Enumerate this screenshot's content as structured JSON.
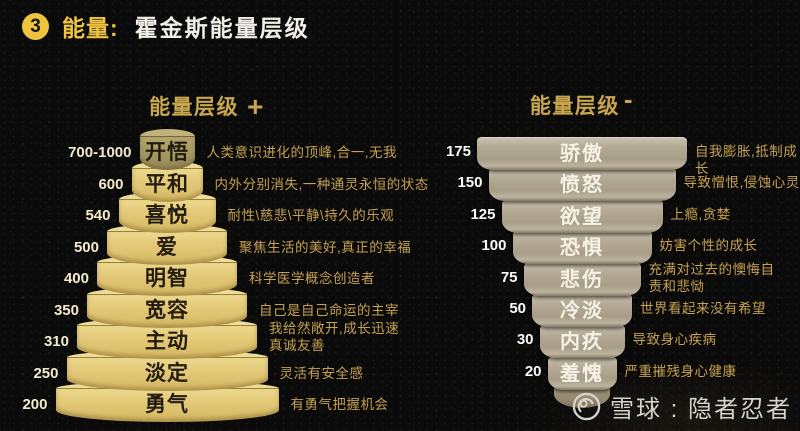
{
  "header": {
    "badge": "3",
    "label": "能量:",
    "title": "霍金斯能量层级"
  },
  "left_pyramid": {
    "title": "能量层级",
    "sign": "+",
    "levels": [
      {
        "value": "700-1000",
        "label": "开悟",
        "desc": "人类意识进化的顶峰,合一,无我"
      },
      {
        "value": "600",
        "label": "平和",
        "desc": "内外分别消失,一种通灵永恒的状态"
      },
      {
        "value": "540",
        "label": "喜悦",
        "desc": "耐性\\慈悲\\平静\\持久的乐观"
      },
      {
        "value": "500",
        "label": "爱",
        "desc": "聚焦生活的美好,真正的幸福"
      },
      {
        "value": "400",
        "label": "明智",
        "desc": "科学医学概念创造者"
      },
      {
        "value": "350",
        "label": "宽容",
        "desc": "自己是自己命运的主宰"
      },
      {
        "value": "310",
        "label": "主动",
        "desc": "我给然敞开,成长迅速\n真诚友善"
      },
      {
        "value": "250",
        "label": "淡定",
        "desc": "灵活有安全感"
      },
      {
        "value": "200",
        "label": "勇气",
        "desc": "有勇气把握机会"
      }
    ]
  },
  "right_pyramid": {
    "title": "能量层级",
    "sign": "-",
    "levels": [
      {
        "value": "175",
        "label": "骄傲",
        "desc": "自我膨胀,抵制成长"
      },
      {
        "value": "150",
        "label": "愤怒",
        "desc": "导致憎恨,侵蚀心灵"
      },
      {
        "value": "125",
        "label": "欲望",
        "desc": "上瘾,贪婪"
      },
      {
        "value": "100",
        "label": "恐惧",
        "desc": "妨害个性的成长"
      },
      {
        "value": "75",
        "label": "悲伤",
        "desc": "充满对过去的懊悔自\n责和悲恸"
      },
      {
        "value": "50",
        "label": "冷淡",
        "desc": "世界看起来没有希望"
      },
      {
        "value": "30",
        "label": "内疚",
        "desc": "导致身心疾病"
      },
      {
        "value": "20",
        "label": "羞愧",
        "desc": "严重摧残身心健康"
      }
    ]
  },
  "watermark": {
    "text": "雪球 : 隐者忍者"
  },
  "colors": {
    "accent": "#eec43e",
    "gold": "#c8a64c",
    "desc_gold": "#c6a14f",
    "value_cream": "#f3e9cb",
    "tier_gold": "#e3c978",
    "tier_gold_light": "#eedc96",
    "tier_olive": "#a69a64",
    "tier_olive_light": "#bfb27b",
    "tier_taupe": "#b4ab97",
    "label_dark": "#231b10",
    "label_light": "#f6f2e6",
    "watermark": "#d7d3ca"
  }
}
